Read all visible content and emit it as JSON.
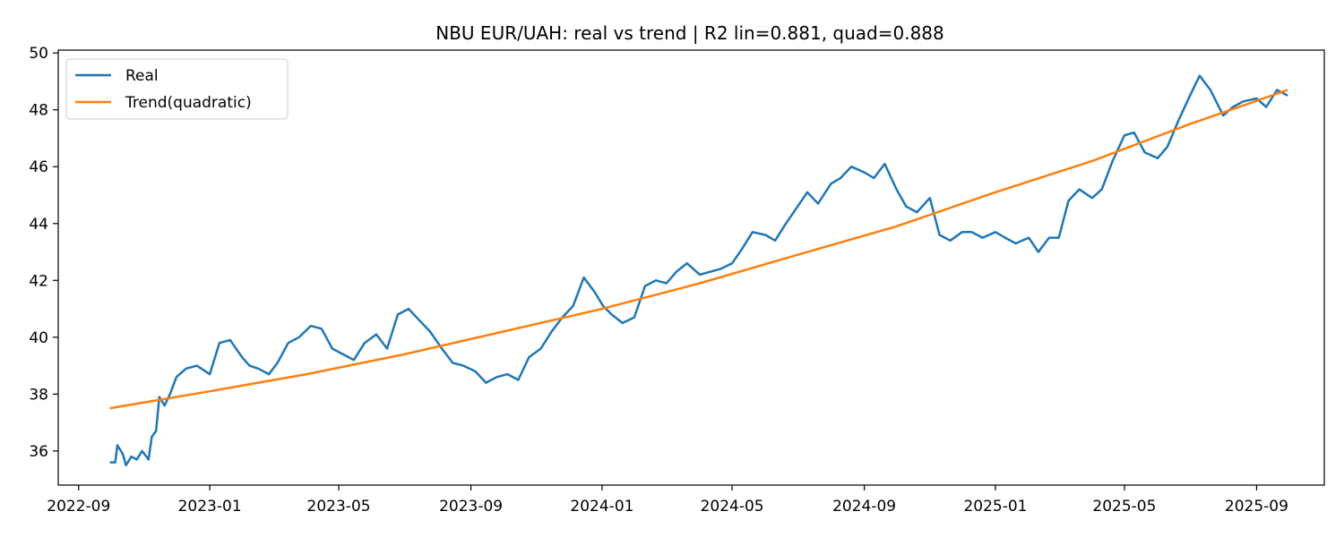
{
  "chart_data": {
    "type": "line",
    "title": "NBU EUR/UAH: real vs trend | R2 lin=0.881, quad=0.888",
    "xlabel": "",
    "ylabel": "",
    "x_range": [
      "2022-08-13",
      "2025-11-03"
    ],
    "ylim": [
      34.8,
      50.1
    ],
    "grid": false,
    "legend_position": "upper left",
    "x_ticks": [
      "2022-09",
      "2023-01",
      "2023-05",
      "2023-09",
      "2024-01",
      "2024-05",
      "2024-09",
      "2025-01",
      "2025-05",
      "2025-09"
    ],
    "y_ticks": [
      36,
      38,
      40,
      42,
      44,
      46,
      48,
      50
    ],
    "series": [
      {
        "name": "Real",
        "color": "#1f77b4",
        "x": [
          "2022-09-30",
          "2022-10-05",
          "2022-10-07",
          "2022-10-12",
          "2022-10-15",
          "2022-10-20",
          "2022-10-25",
          "2022-10-30",
          "2022-11-05",
          "2022-11-08",
          "2022-11-12",
          "2022-11-15",
          "2022-11-20",
          "2022-11-25",
          "2022-12-01",
          "2022-12-10",
          "2022-12-20",
          "2023-01-01",
          "2023-01-10",
          "2023-01-20",
          "2023-01-31",
          "2023-02-07",
          "2023-02-15",
          "2023-02-25",
          "2023-03-05",
          "2023-03-15",
          "2023-03-25",
          "2023-04-05",
          "2023-04-15",
          "2023-04-25",
          "2023-05-05",
          "2023-05-15",
          "2023-05-25",
          "2023-06-05",
          "2023-06-15",
          "2023-06-25",
          "2023-07-05",
          "2023-07-15",
          "2023-07-25",
          "2023-08-05",
          "2023-08-15",
          "2023-08-25",
          "2023-09-05",
          "2023-09-15",
          "2023-09-25",
          "2023-10-05",
          "2023-10-15",
          "2023-10-25",
          "2023-11-05",
          "2023-11-15",
          "2023-11-25",
          "2023-12-05",
          "2023-12-15",
          "2023-12-25",
          "2024-01-02",
          "2024-01-10",
          "2024-01-20",
          "2024-01-31",
          "2024-02-10",
          "2024-02-20",
          "2024-03-01",
          "2024-03-10",
          "2024-03-20",
          "2024-04-01",
          "2024-04-10",
          "2024-04-20",
          "2024-05-01",
          "2024-05-10",
          "2024-05-20",
          "2024-06-01",
          "2024-06-10",
          "2024-06-20",
          "2024-07-01",
          "2024-07-10",
          "2024-07-20",
          "2024-08-01",
          "2024-08-10",
          "2024-08-20",
          "2024-09-01",
          "2024-09-10",
          "2024-09-20",
          "2024-10-01",
          "2024-10-10",
          "2024-10-20",
          "2024-11-01",
          "2024-11-10",
          "2024-11-20",
          "2024-12-01",
          "2024-12-10",
          "2024-12-20",
          "2025-01-01",
          "2025-01-10",
          "2025-01-20",
          "2025-02-01",
          "2025-02-10",
          "2025-02-20",
          "2025-03-01",
          "2025-03-10",
          "2025-03-20",
          "2025-04-01",
          "2025-04-10",
          "2025-04-20",
          "2025-05-01",
          "2025-05-10",
          "2025-05-20",
          "2025-06-01",
          "2025-06-10",
          "2025-06-20",
          "2025-07-01",
          "2025-07-10",
          "2025-07-20",
          "2025-08-01",
          "2025-08-10",
          "2025-08-20",
          "2025-09-01",
          "2025-09-10",
          "2025-09-20",
          "2025-09-30"
        ],
        "values": [
          35.6,
          35.6,
          36.2,
          35.9,
          35.5,
          35.8,
          35.7,
          36.0,
          35.7,
          36.5,
          36.7,
          37.9,
          37.6,
          38.0,
          38.6,
          38.9,
          39.0,
          38.7,
          39.8,
          39.9,
          39.3,
          39.0,
          38.9,
          38.7,
          39.1,
          39.8,
          40.0,
          40.4,
          40.3,
          39.6,
          39.4,
          39.2,
          39.8,
          40.1,
          39.6,
          40.8,
          41.0,
          40.6,
          40.2,
          39.6,
          39.1,
          39.0,
          38.8,
          38.4,
          38.6,
          38.7,
          38.5,
          39.3,
          39.6,
          40.2,
          40.7,
          41.1,
          42.1,
          41.6,
          41.1,
          40.8,
          40.5,
          40.7,
          41.8,
          42.0,
          41.9,
          42.3,
          42.6,
          42.2,
          42.3,
          42.4,
          42.6,
          43.1,
          43.7,
          43.6,
          43.4,
          44.0,
          44.6,
          45.1,
          44.7,
          45.4,
          45.6,
          46.0,
          45.8,
          45.6,
          46.1,
          45.2,
          44.6,
          44.4,
          44.9,
          43.6,
          43.4,
          43.7,
          43.7,
          43.5,
          43.7,
          43.5,
          43.3,
          43.5,
          43.0,
          43.5,
          43.5,
          44.8,
          45.2,
          44.9,
          45.2,
          46.2,
          47.1,
          47.2,
          46.5,
          46.3,
          46.7,
          47.6,
          48.5,
          49.2,
          48.7,
          47.8,
          48.1,
          48.3,
          48.4,
          48.1,
          48.7,
          48.5
        ]
      },
      {
        "name": "Trend(quadratic)",
        "color": "#ff7f0e",
        "x": [
          "2022-09-30",
          "2023-01-01",
          "2023-04-01",
          "2023-07-01",
          "2023-10-01",
          "2024-01-01",
          "2024-04-01",
          "2024-07-01",
          "2024-10-01",
          "2025-01-01",
          "2025-04-01",
          "2025-07-01",
          "2025-09-30"
        ],
        "values": [
          37.5,
          38.1,
          38.7,
          39.4,
          40.2,
          41.0,
          41.9,
          42.9,
          43.9,
          45.1,
          46.2,
          47.5,
          48.7
        ]
      }
    ]
  }
}
